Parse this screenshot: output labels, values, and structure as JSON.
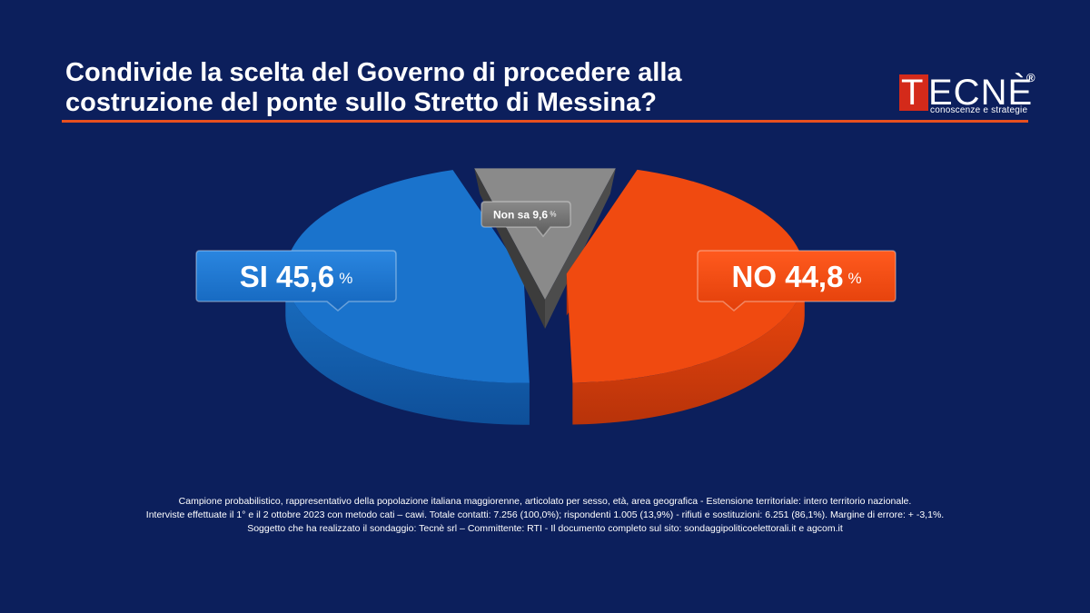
{
  "title_lines": [
    "Condivide la scelta del Governo di procedere alla",
    "costruzione del ponte sullo Stretto di Messina?"
  ],
  "logo": {
    "letter_t": "T",
    "name_rest": "ECNÈ",
    "registered": "®",
    "tagline": "conoscenze e strategie",
    "accent_color": "#d42a1a"
  },
  "chart_data": {
    "type": "pie",
    "title": "Condivide la scelta del Governo di procedere alla costruzione del ponte sullo Stretto di Messina?",
    "slices": [
      {
        "label": "SI",
        "value": 45.6,
        "display": "SI 45,6",
        "unit": "%",
        "color": "#1a73cc"
      },
      {
        "label": "Non sa",
        "value": 9.6,
        "display": "Non sa 9,6",
        "unit": "%",
        "color": "#7d7d7d"
      },
      {
        "label": "NO",
        "value": 44.8,
        "display": "NO 44,8",
        "unit": "%",
        "color": "#f04a10"
      }
    ]
  },
  "notes": [
    "Campione probabilistico, rappresentativo della popolazione italiana maggiorenne, articolato per sesso, età, area geografica - Estensione territoriale: intero territorio nazionale.",
    "Interviste effettuate il 1° e il 2 ottobre 2023 con metodo cati – cawi. Totale contatti: 7.256 (100,0%); rispondenti 1.005 (13,9%) - rifiuti e sostituzioni: 6.251 (86,1%). Margine di errore: + -3,1%.",
    "Soggetto che ha realizzato il sondaggio: Tecnè srl – Committente: RTI - Il documento completo sul sito: sondaggipoliticoelettorali.it e agcom.it"
  ],
  "colors": {
    "background": "#0c1f5c",
    "accent_rule": "#e8501f"
  }
}
